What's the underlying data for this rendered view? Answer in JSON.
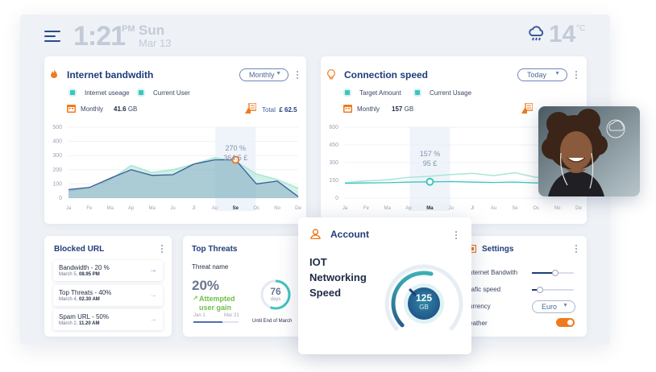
{
  "header": {
    "time": "1:21",
    "ampm": "PM",
    "day": "Sun",
    "date": "Mar 13",
    "temperature": "14",
    "temp_unit": "°C",
    "weather_icon": "cloud-rain-icon"
  },
  "bandwidth": {
    "title": "Internet bandwdith",
    "dropdown": "Monthly",
    "legend": [
      "Internet useage",
      "Current User"
    ],
    "monthly_label": "Monthly",
    "monthly_value": "41.6",
    "monthly_unit": "GB",
    "total_label": "Total",
    "total_value": "£ 62.5",
    "annotation_pct": "270 %",
    "annotation_amt": "364.5 £"
  },
  "speed": {
    "title": "Connection speed",
    "dropdown": "Today",
    "legend": [
      "Target Amount",
      "Current Usage"
    ],
    "monthly_label": "Monthly",
    "monthly_value": "157",
    "monthly_unit": "GB",
    "annotation_pct": "157 %",
    "annotation_amt": "95 £"
  },
  "chart_data": [
    {
      "type": "area",
      "categories": [
        "Ja",
        "Fe",
        "Ma",
        "Ap",
        "Ma",
        "Ju",
        "Jl",
        "Au",
        "Se",
        "Oc",
        "No",
        "De"
      ],
      "yticks": [
        0,
        100,
        200,
        300,
        400,
        500
      ],
      "ylim": [
        0,
        500
      ],
      "highlight": "Se",
      "series": [
        {
          "name": "Internet useage",
          "values": [
            50,
            75,
            130,
            230,
            180,
            200,
            240,
            285,
            260,
            170,
            130,
            70
          ],
          "color": "#a9e6d5"
        },
        {
          "name": "Current User",
          "values": [
            60,
            75,
            140,
            200,
            160,
            165,
            240,
            270,
            270,
            100,
            120,
            10
          ],
          "color": "#3b5a9a"
        }
      ]
    },
    {
      "type": "line",
      "categories": [
        "Ja",
        "Fe",
        "Ma",
        "Ap",
        "Ma",
        "Ju",
        "Jl",
        "Au",
        "Se",
        "Oc",
        "No",
        "De"
      ],
      "yticks": [
        0,
        150,
        300,
        450,
        600
      ],
      "ylim": [
        0,
        600
      ],
      "highlight": "Ma",
      "series": [
        {
          "name": "Target Amount",
          "values": [
            130,
            145,
            155,
            175,
            185,
            200,
            210,
            190,
            215,
            175,
            215,
            175
          ],
          "color": "#a9e6d5"
        },
        {
          "name": "Current Usage",
          "values": [
            125,
            128,
            130,
            135,
            138,
            140,
            135,
            132,
            136,
            128,
            130,
            128
          ],
          "color": "#3fc4be"
        }
      ]
    }
  ],
  "blocked": {
    "title": "Blocked URL",
    "items": [
      {
        "title": "Bandwidth - 20 %",
        "date": "March 5,",
        "time": "08.95 PM"
      },
      {
        "title": "Top Threats - 40%",
        "date": "March 4,",
        "time": "02.30 AM"
      },
      {
        "title": "Spam URL - 50%",
        "date": "March 2,",
        "time": "11.20 AM"
      }
    ]
  },
  "threats": {
    "title": "Top Threats",
    "subtitle": "Threat name",
    "pct": "20%",
    "gain_line1": "Attempted",
    "gain_line2": "user gain",
    "range_start": "Jan 1",
    "range_end": "Mar 21",
    "days_value": "76",
    "days_label": "days",
    "days_caption": "Until End of March",
    "range_fill": 0.65
  },
  "account": {
    "title": "Account",
    "line1": "IOT",
    "line2": "Networking",
    "line3": "Speed",
    "gauge_value": "125",
    "gauge_unit": "GB",
    "gauge_level": 0.55
  },
  "settings": {
    "title": "Settings",
    "items": [
      {
        "label": "nternet Bandwith",
        "level": 0.55
      },
      {
        "label": "rafic speed",
        "level": 0.2
      }
    ],
    "currency_label": "urrency",
    "currency_value": "Euro",
    "weather_label": "eather",
    "weather_on": true
  }
}
